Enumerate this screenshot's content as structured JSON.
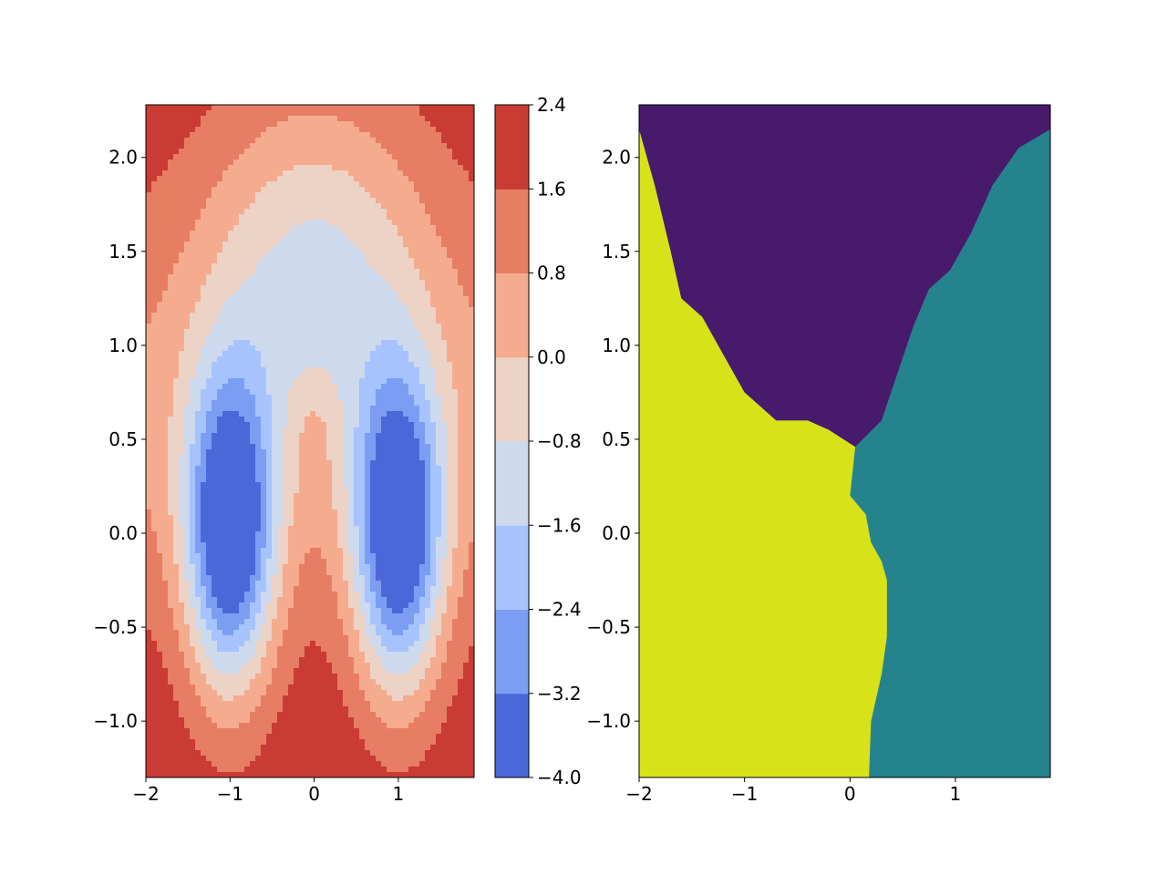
{
  "chart_data": [
    {
      "type": "contour",
      "title": "",
      "xlabel": "",
      "ylabel": "",
      "xlim": [
        -2.0,
        1.9
      ],
      "ylim": [
        -1.3,
        2.28
      ],
      "xticks": [
        -2,
        -1,
        0,
        1
      ],
      "xtick_labels": [
        "−2",
        "−1",
        "0",
        "1"
      ],
      "yticks": [
        -1.0,
        -0.5,
        0.0,
        0.5,
        1.0,
        1.5,
        2.0
      ],
      "ytick_labels": [
        "−1.0",
        "−0.5",
        "0.0",
        "0.5",
        "1.0",
        "1.5",
        "2.0"
      ],
      "levels": [
        -4.0,
        -3.2,
        -2.4,
        -1.6,
        -0.8,
        0.0,
        0.8,
        1.6,
        2.4
      ],
      "level_colors": [
        "#4b68d8",
        "#7b9ef3",
        "#a6c3fd",
        "#cdd9ec",
        "#edd2c6",
        "#f5ab8e",
        "#e77d63",
        "#c93b33"
      ],
      "minima": [
        {
          "x": -1.0,
          "y": 0.0
        },
        {
          "x": 1.0,
          "y": 0.0
        }
      ],
      "saddle": {
        "x": 0.0,
        "y": 0.5
      },
      "colorbar": {
        "ticks": [
          2.4,
          1.6,
          0.8,
          0.0,
          -0.8,
          -1.6,
          -2.4,
          -3.2,
          -4.0
        ],
        "tick_labels": [
          "2.4",
          "1.6",
          "0.8",
          "0.0",
          "−0.8",
          "−1.6",
          "−2.4",
          "−3.2",
          "−4.0"
        ]
      }
    },
    {
      "type": "heatmap",
      "title": "",
      "xlabel": "",
      "ylabel": "",
      "xlim": [
        -2.0,
        1.9
      ],
      "ylim": [
        -1.3,
        2.28
      ],
      "xticks": [
        -2,
        -1,
        0,
        1
      ],
      "xtick_labels": [
        "−2",
        "−1",
        "0",
        "1"
      ],
      "yticks": [
        -1.0,
        -0.5,
        0.0,
        0.5,
        1.0,
        1.5,
        2.0
      ],
      "ytick_labels": [
        "−1.0",
        "−0.5",
        "0.0",
        "0.5",
        "1.0",
        "1.5",
        "2.0"
      ],
      "regions": [
        {
          "color": "#481a6c",
          "location": "top"
        },
        {
          "color": "#25838e",
          "location": "right"
        },
        {
          "color": "#d8e219",
          "location": "left"
        }
      ],
      "boundary_top_left": [
        [
          -2.0,
          2.15
        ],
        [
          -1.85,
          1.85
        ],
        [
          -1.7,
          1.5
        ],
        [
          -1.6,
          1.25
        ],
        [
          -1.4,
          1.15
        ],
        [
          -1.2,
          0.95
        ],
        [
          -1.0,
          0.75
        ],
        [
          -0.7,
          0.6
        ],
        [
          -0.4,
          0.6
        ],
        [
          -0.2,
          0.55
        ],
        [
          0.05,
          0.46
        ]
      ],
      "boundary_top_right": [
        [
          0.05,
          0.46
        ],
        [
          0.3,
          0.6
        ],
        [
          0.45,
          0.85
        ],
        [
          0.6,
          1.1
        ],
        [
          0.75,
          1.3
        ],
        [
          0.95,
          1.4
        ],
        [
          1.15,
          1.6
        ],
        [
          1.35,
          1.85
        ],
        [
          1.6,
          2.05
        ],
        [
          1.9,
          2.15
        ]
      ],
      "boundary_left_right": [
        [
          0.05,
          0.46
        ],
        [
          0.0,
          0.2
        ],
        [
          0.15,
          0.1
        ],
        [
          0.2,
          -0.05
        ],
        [
          0.3,
          -0.15
        ],
        [
          0.35,
          -0.25
        ],
        [
          0.35,
          -0.55
        ],
        [
          0.3,
          -0.75
        ],
        [
          0.2,
          -1.0
        ],
        [
          0.18,
          -1.3
        ]
      ]
    }
  ]
}
